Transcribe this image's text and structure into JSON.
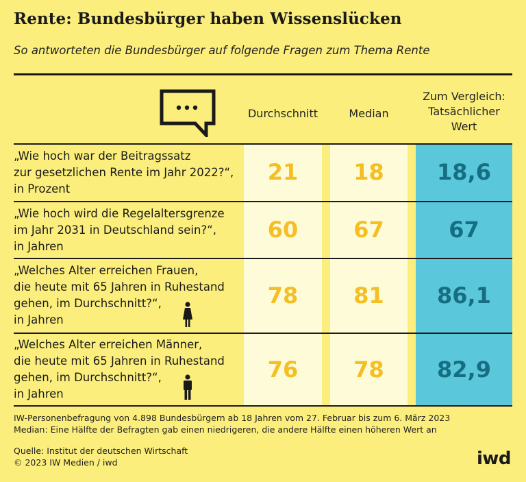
{
  "title": "Rente: Bundesbürger haben Wissenslücken",
  "subtitle": "So antworteten die Bundesbürger auf folgende Fragen zum Thema Rente",
  "columns": {
    "average": "Durchschnitt",
    "median": "Median",
    "actual": [
      "Zum Vergleich:",
      "Tatsächlicher",
      "Wert"
    ]
  },
  "rows": [
    {
      "question": [
        "„Wie hoch war der Beitragssatz",
        "zur gesetzlichen Rente im Jahr 2022?“,",
        "in Prozent"
      ],
      "average": "21",
      "median": "18",
      "actual": "18,6"
    },
    {
      "question": [
        "„Wie hoch wird die Regelaltersgrenze",
        "im Jahr 2031 in Deutschland sein?“,",
        "in Jahren"
      ],
      "average": "60",
      "median": "67",
      "actual": "67"
    },
    {
      "question": [
        "„Welches Alter erreichen Frauen,",
        "die heute mit 65 Jahren in Ruhestand",
        "gehen, im Durchschnitt?“,",
        "in Jahren"
      ],
      "average": "78",
      "median": "81",
      "actual": "86,1",
      "icon": "woman-icon"
    },
    {
      "question": [
        "„Welches Alter erreichen Männer,",
        "die heute mit 65 Jahren in Ruhestand",
        "gehen, im Durchschnitt?“,",
        "in Jahren"
      ],
      "average": "76",
      "median": "78",
      "actual": "82,9",
      "icon": "man-icon"
    }
  ],
  "footnotes": [
    "IW-Personenbefragung von 4.898 Bundesbürgern ab 18 Jahren vom 27. Februar bis zum 6. März 2023",
    "Median: Eine Hälfte der Befragten gab einen niedrigeren, die andere Hälfte einen höheren Wert an"
  ],
  "source": [
    "Quelle: Institut der deutschen Wirtschaft",
    "© 2023 IW Medien / iwd"
  ],
  "logo": "iwd",
  "colors": {
    "background": "#FBEE7C",
    "answer_column": "#FEFBD9",
    "actual_column": "#5BC7DA",
    "answer_value": "#F5BE22",
    "actual_value": "#166E82"
  }
}
